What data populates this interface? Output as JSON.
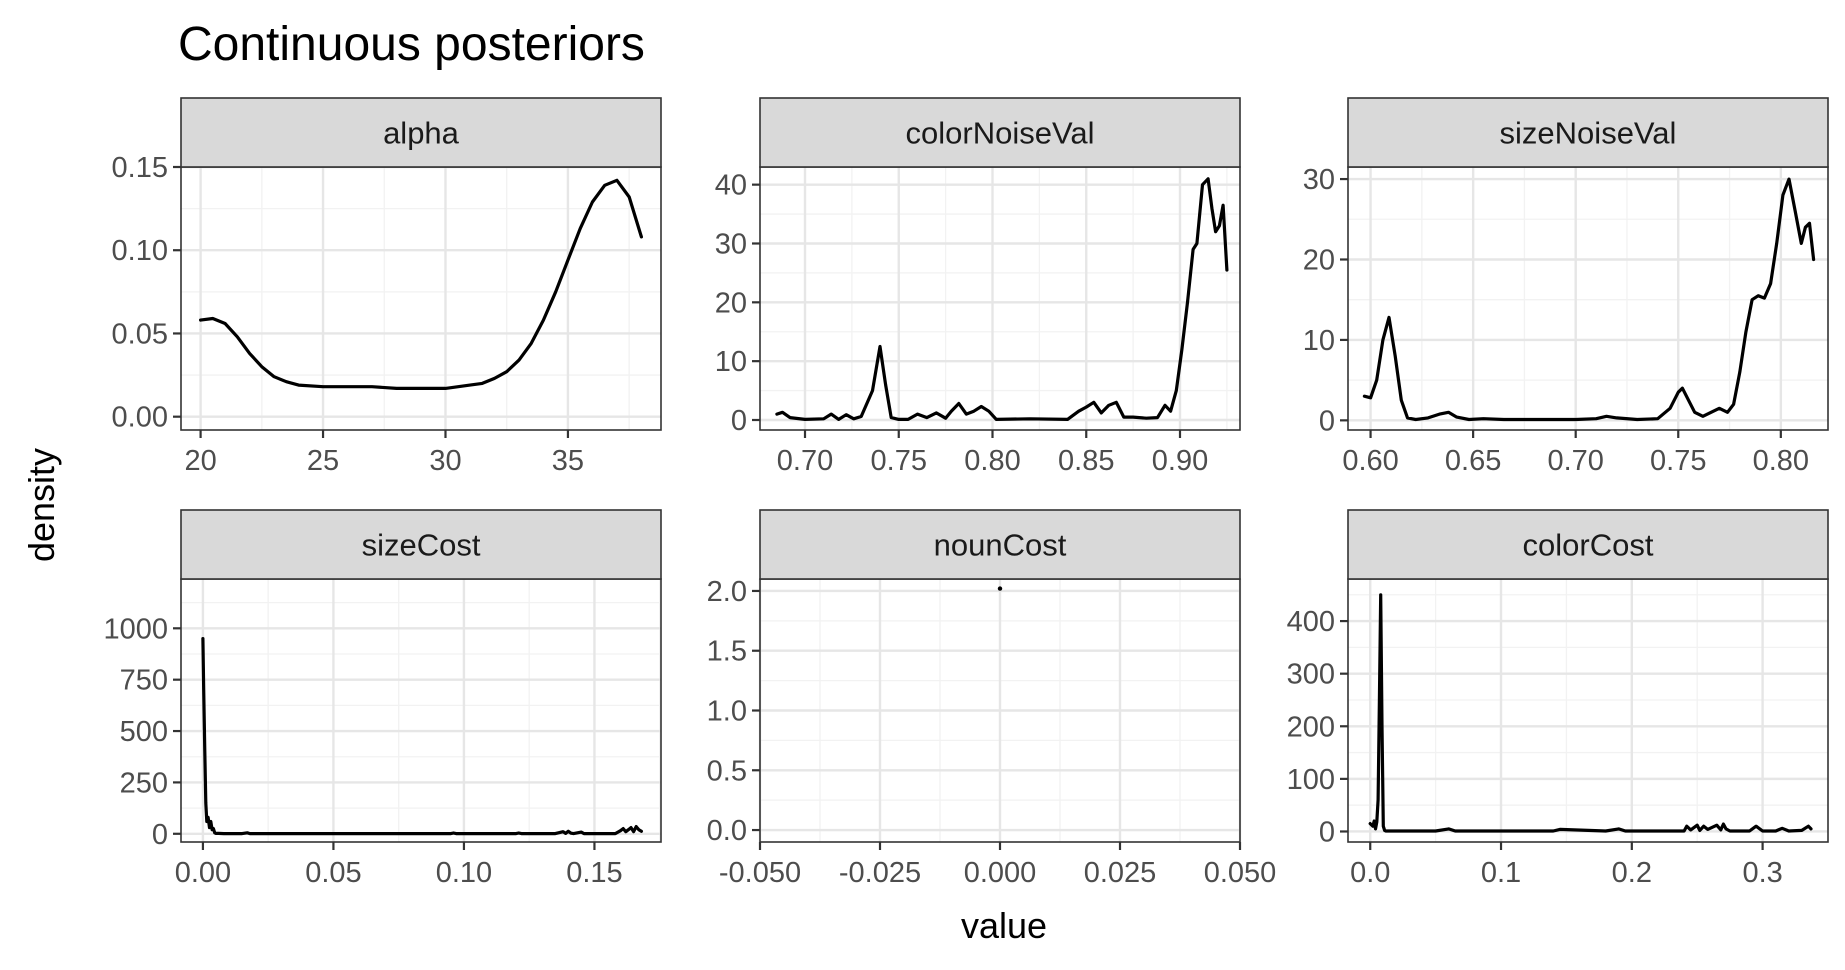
{
  "chart_data": {
    "type": "line",
    "title": "Continuous posteriors",
    "xlabel": "value",
    "ylabel": "density",
    "grid": true,
    "legend": "none",
    "facets": [
      {
        "name": "alpha",
        "xlim": [
          19.2,
          38.8
        ],
        "ylim": [
          -0.008,
          0.15
        ],
        "x_ticks": [
          20,
          25,
          30,
          35
        ],
        "x_tick_labels": [
          "20",
          "25",
          "30",
          "35"
        ],
        "y_ticks": [
          0,
          0.05,
          0.1,
          0.15
        ],
        "y_tick_labels": [
          "0.00",
          "0.05",
          "0.10",
          "0.15"
        ],
        "x": [
          20,
          20.5,
          21,
          21.5,
          22,
          22.5,
          23,
          23.5,
          24,
          25,
          26,
          27,
          28,
          29,
          30,
          31,
          31.5,
          32,
          32.5,
          33,
          33.5,
          34,
          34.5,
          35,
          35.5,
          36,
          36.5,
          37,
          37.5,
          38
        ],
        "y": [
          0.058,
          0.059,
          0.056,
          0.048,
          0.038,
          0.03,
          0.024,
          0.021,
          0.019,
          0.018,
          0.018,
          0.018,
          0.017,
          0.017,
          0.017,
          0.019,
          0.02,
          0.023,
          0.027,
          0.034,
          0.044,
          0.058,
          0.075,
          0.094,
          0.113,
          0.129,
          0.139,
          0.142,
          0.132,
          0.108
        ]
      },
      {
        "name": "colorNoiseVal",
        "xlim": [
          0.676,
          0.932
        ],
        "ylim": [
          -1.7,
          43
        ],
        "x_ticks": [
          0.7,
          0.75,
          0.8,
          0.85,
          0.9
        ],
        "x_tick_labels": [
          "0.70",
          "0.75",
          "0.80",
          "0.85",
          "0.90"
        ],
        "y_ticks": [
          0,
          10,
          20,
          30,
          40
        ],
        "y_tick_labels": [
          "0",
          "10",
          "20",
          "30",
          "40"
        ],
        "x": [
          0.685,
          0.688,
          0.692,
          0.7,
          0.71,
          0.714,
          0.718,
          0.722,
          0.726,
          0.73,
          0.736,
          0.74,
          0.743,
          0.746,
          0.75,
          0.755,
          0.76,
          0.765,
          0.77,
          0.775,
          0.778,
          0.782,
          0.786,
          0.79,
          0.794,
          0.798,
          0.802,
          0.82,
          0.84,
          0.846,
          0.85,
          0.854,
          0.858,
          0.862,
          0.866,
          0.87,
          0.875,
          0.882,
          0.888,
          0.892,
          0.895,
          0.898,
          0.901,
          0.904,
          0.907,
          0.909,
          0.912,
          0.915,
          0.917,
          0.919,
          0.921,
          0.923,
          0.925
        ],
        "y": [
          1.0,
          1.3,
          0.4,
          0.1,
          0.2,
          1.0,
          0.1,
          0.9,
          0.2,
          0.6,
          5.0,
          12.5,
          6.0,
          0.4,
          0.1,
          0.1,
          1.0,
          0.4,
          1.2,
          0.3,
          1.5,
          2.8,
          1.0,
          1.5,
          2.3,
          1.5,
          0.1,
          0.2,
          0.1,
          1.5,
          2.2,
          3.0,
          1.2,
          2.5,
          3.0,
          0.5,
          0.5,
          0.3,
          0.4,
          2.5,
          1.5,
          5.0,
          12.0,
          20.0,
          29.0,
          30.0,
          40.0,
          41.0,
          36.0,
          32.0,
          33.0,
          36.5,
          25.5
        ]
      },
      {
        "name": "sizeNoiseVal",
        "xlim": [
          0.589,
          0.823
        ],
        "ylim": [
          -1.2,
          31.5
        ],
        "x_ticks": [
          0.6,
          0.65,
          0.7,
          0.75,
          0.8
        ],
        "x_tick_labels": [
          "0.60",
          "0.65",
          "0.70",
          "0.75",
          "0.80"
        ],
        "y_ticks": [
          0,
          10,
          20,
          30
        ],
        "y_tick_labels": [
          "0",
          "10",
          "20",
          "30"
        ],
        "x": [
          0.597,
          0.6,
          0.603,
          0.606,
          0.609,
          0.612,
          0.615,
          0.618,
          0.622,
          0.628,
          0.634,
          0.638,
          0.642,
          0.648,
          0.655,
          0.665,
          0.68,
          0.7,
          0.71,
          0.715,
          0.72,
          0.73,
          0.74,
          0.746,
          0.75,
          0.752,
          0.755,
          0.758,
          0.762,
          0.766,
          0.77,
          0.774,
          0.777,
          0.78,
          0.783,
          0.786,
          0.789,
          0.792,
          0.795,
          0.798,
          0.801,
          0.804,
          0.807,
          0.81,
          0.812,
          0.814,
          0.816
        ],
        "y": [
          3.0,
          2.8,
          5.0,
          10.0,
          12.8,
          8.0,
          2.5,
          0.3,
          0.1,
          0.3,
          0.8,
          1.0,
          0.4,
          0.1,
          0.2,
          0.1,
          0.1,
          0.1,
          0.2,
          0.5,
          0.3,
          0.1,
          0.2,
          1.5,
          3.5,
          4.0,
          2.5,
          1.0,
          0.5,
          1.0,
          1.5,
          1.0,
          2.0,
          6.0,
          11.0,
          15.0,
          15.5,
          15.2,
          17.0,
          22.0,
          28.0,
          30.0,
          26.0,
          22.0,
          24.0,
          24.5,
          20.0
        ]
      },
      {
        "name": "sizeCost",
        "xlim": [
          -0.0084,
          0.1755
        ],
        "ylim": [
          -40,
          1240
        ],
        "x_ticks": [
          0,
          0.05,
          0.1,
          0.15
        ],
        "x_tick_labels": [
          "0.00",
          "0.05",
          "0.10",
          "0.15"
        ],
        "y_ticks": [
          0,
          250,
          500,
          750,
          1000
        ],
        "y_tick_labels": [
          "0",
          "250",
          "500",
          "750",
          "1000"
        ],
        "x": [
          0,
          0.0003,
          0.0007,
          0.0011,
          0.0015,
          0.002,
          0.0025,
          0.003,
          0.0035,
          0.004,
          0.0045,
          0.005,
          0.006,
          0.008,
          0.01,
          0.015,
          0.017,
          0.018,
          0.019,
          0.025,
          0.04,
          0.06,
          0.08,
          0.095,
          0.096,
          0.097,
          0.11,
          0.12,
          0.121,
          0.122,
          0.135,
          0.138,
          0.139,
          0.14,
          0.141,
          0.142,
          0.145,
          0.146,
          0.147,
          0.155,
          0.158,
          0.16,
          0.161,
          0.162,
          0.163,
          0.164,
          0.165,
          0.166,
          0.167,
          0.168
        ],
        "y": [
          950,
          700,
          400,
          150,
          60,
          80,
          30,
          60,
          20,
          25,
          5,
          2,
          2,
          1,
          1,
          1,
          5,
          1,
          1,
          1,
          1,
          1,
          1,
          1,
          4,
          1,
          1,
          1,
          4,
          1,
          1,
          10,
          2,
          12,
          3,
          1,
          8,
          1,
          1,
          1,
          1,
          15,
          25,
          10,
          20,
          30,
          10,
          35,
          20,
          12
        ]
      },
      {
        "name": "nounCost",
        "xlim": [
          -0.05,
          0.05
        ],
        "ylim": [
          -0.1,
          2.1
        ],
        "x_ticks": [
          -0.05,
          -0.025,
          0,
          0.025,
          0.05
        ],
        "x_tick_labels": [
          "-0.050",
          "-0.025",
          "0.000",
          "0.025",
          "0.050"
        ],
        "y_ticks": [
          0,
          0.5,
          1,
          1.5,
          2
        ],
        "y_tick_labels": [
          "0.0",
          "0.5",
          "1.0",
          "1.5",
          "2.0"
        ],
        "x": [
          0
        ],
        "y": [
          2.02
        ]
      },
      {
        "name": "colorCost",
        "xlim": [
          -0.017,
          0.35
        ],
        "ylim": [
          -20,
          480
        ],
        "x_ticks": [
          0,
          0.1,
          0.2,
          0.3
        ],
        "x_tick_labels": [
          "0.0",
          "0.1",
          "0.2",
          "0.3"
        ],
        "y_ticks": [
          0,
          100,
          200,
          300,
          400
        ],
        "y_tick_labels": [
          "0",
          "100",
          "200",
          "300",
          "400"
        ],
        "x": [
          0,
          0.002,
          0.003,
          0.004,
          0.005,
          0.006,
          0.007,
          0.008,
          0.009,
          0.01,
          0.011,
          0.012,
          0.02,
          0.05,
          0.06,
          0.065,
          0.1,
          0.14,
          0.145,
          0.18,
          0.19,
          0.195,
          0.2,
          0.24,
          0.242,
          0.245,
          0.25,
          0.252,
          0.255,
          0.258,
          0.265,
          0.268,
          0.27,
          0.272,
          0.275,
          0.29,
          0.295,
          0.3,
          0.31,
          0.315,
          0.32,
          0.33,
          0.335,
          0.337
        ],
        "y": [
          15,
          10,
          20,
          5,
          18,
          60,
          250,
          450,
          200,
          10,
          2,
          1,
          1,
          1,
          5,
          1,
          1,
          1,
          4,
          1,
          5,
          1,
          1,
          1,
          10,
          3,
          12,
          2,
          10,
          4,
          12,
          3,
          14,
          5,
          1,
          1,
          10,
          1,
          1,
          6,
          1,
          2,
          10,
          5
        ]
      }
    ]
  }
}
